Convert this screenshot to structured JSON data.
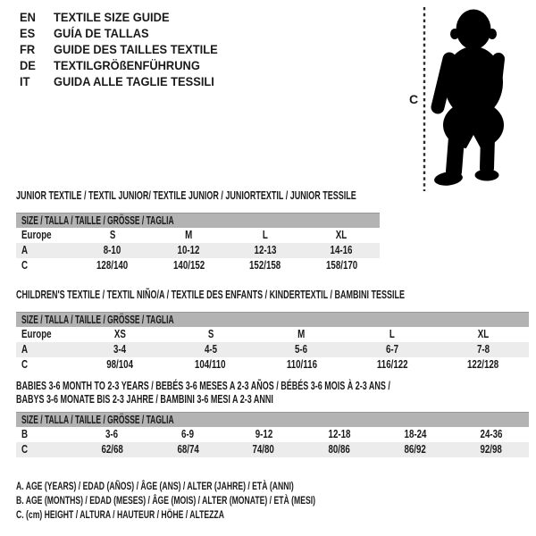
{
  "colors": {
    "table_header_gray": "#b3b3b3",
    "row_alt_gray": "#ececec",
    "text_black": "#1a1a1a",
    "silhouette_black": "#000000"
  },
  "languages": [
    {
      "code": "EN",
      "label": "TEXTILE SIZE GUIDE"
    },
    {
      "code": "ES",
      "label": "GUÍA DE TALLAS"
    },
    {
      "code": "FR",
      "label": "GUIDE DES TAILLES TEXTILE"
    },
    {
      "code": "DE",
      "label": "TEXTILGRÖßENFÜHRUNG"
    },
    {
      "code": "IT",
      "label": "GUIDA ALLE TAGLIE TESSILI"
    }
  ],
  "figure": {
    "measure_label": "C",
    "silhouette": "baby-toddler-silhouette"
  },
  "tables": [
    {
      "title_lines": [
        "JUNIOR TEXTILE / TEXTIL JUNIOR/ TEXTILE JUNIOR / JUNIORTEXTIL / JUNIOR TESSILE"
      ],
      "size_header": "SIZE / TALLA / TAILLE / GRÖSSE / TAGLIA",
      "rows": [
        {
          "label": "Europe",
          "cells": [
            "S",
            "M",
            "L",
            "XL"
          ]
        },
        {
          "label": "A",
          "cells": [
            "8-10",
            "10-12",
            "12-13",
            "14-16"
          ]
        },
        {
          "label": "C",
          "cells": [
            "128/140",
            "140/152",
            "152/158",
            "158/170"
          ]
        }
      ]
    },
    {
      "title_lines": [
        "CHILDREN'S TEXTILE / TEXTIL NIÑO/A / TEXTILE DES ENFANTS / KINDERTEXTIL / BAMBINI TESSILE"
      ],
      "size_header": "SIZE / TALLA / TAILLE / GRÖSSE / TAGLIA",
      "rows": [
        {
          "label": "Europe",
          "cells": [
            "XS",
            "S",
            "M",
            "L",
            "XL"
          ]
        },
        {
          "label": "A",
          "cells": [
            "3-4",
            "4-5",
            "5-6",
            "6-7",
            "7-8"
          ]
        },
        {
          "label": "C",
          "cells": [
            "98/104",
            "104/110",
            "110/116",
            "116/122",
            "122/128"
          ]
        }
      ]
    },
    {
      "title_lines": [
        "BABIES 3-6 MONTH TO 2-3 YEARS / BEBÉS 3-6 MESES A 2-3 AÑOS / BÉBÉS 3-6 MOIS À 2-3 ANS /",
        "BABYS 3-6 MONATE BIS 2-3 JAHRE / BAMBINI 3-6 MESI A 2-3 ANNI"
      ],
      "size_header": "SIZE / TALLA / TAILLE / GRÖSSE / TAGLIA",
      "rows": [
        {
          "label": "B",
          "cells": [
            "3-6",
            "6-9",
            "9-12",
            "12-18",
            "18-24",
            "24-36"
          ]
        },
        {
          "label": "C",
          "cells": [
            "62/68",
            "68/74",
            "74/80",
            "80/86",
            "86/92",
            "92/98"
          ]
        }
      ]
    }
  ],
  "footnotes": [
    "A. AGE (YEARS) / EDAD (AÑOS) / ÂGE (ANS) / ALTER (JAHRE) / ETÀ (ANNI)",
    "B. AGE (MONTHS) / EDAD (MESES) / ÂGE (MOIS) / ALTER (MONATE) / ETÀ (MESI)",
    "C. (cm) HEIGHT / ALTURA / HAUTEUR / HÖHE / ALTEZZA"
  ]
}
